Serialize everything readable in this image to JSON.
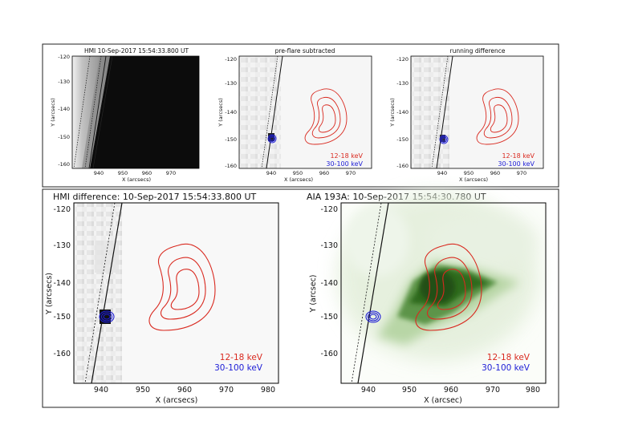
{
  "figure": {
    "colors": {
      "red_contour": "#d9291f",
      "blue_contour": "#1d1dd6",
      "green_emission": "#2e6a1e",
      "frame": "#222222"
    },
    "top_panels": [
      {
        "id": "hmi",
        "title": "HMI 10-Sep-2017 15:54:33.800 UT",
        "xlabel": "X (arcsecs)",
        "ylabel": "Y (arcsecs)",
        "xticks": [
          "940",
          "950",
          "960",
          "970"
        ],
        "yticks": [
          "-120",
          "-130",
          "-140",
          "-150",
          "-160"
        ],
        "legend": []
      },
      {
        "id": "preflare",
        "title": "pre-flare subtracted",
        "xlabel": "X (arcsecs)",
        "ylabel": "Y (arcsecs)",
        "xticks": [
          "940",
          "950",
          "960",
          "970"
        ],
        "yticks": [
          "-120",
          "-130",
          "-140",
          "-150",
          "-160"
        ],
        "legend": [
          "12-18 keV",
          "30-100 keV"
        ]
      },
      {
        "id": "runningdiff",
        "title": "running difference",
        "xlabel": "X (arcsecs)",
        "ylabel": "Y (arcsecs)",
        "xticks": [
          "940",
          "950",
          "960",
          "970"
        ],
        "yticks": [
          "-120",
          "-130",
          "-140",
          "-150",
          "-160"
        ],
        "legend": [
          "12-18 keV",
          "30-100 keV"
        ]
      }
    ],
    "bottom_panels": [
      {
        "id": "hmidiff",
        "title": "HMI difference: 10-Sep-2017 15:54:33.800 UT",
        "xlabel": "X (arcsecs)",
        "ylabel": "Y (arcsecs)",
        "xticks": [
          "940",
          "950",
          "960",
          "970",
          "980"
        ],
        "yticks": [
          "-120",
          "-130",
          "-140",
          "-150",
          "-160"
        ],
        "legend": [
          "12-18 keV",
          "30-100 keV"
        ]
      },
      {
        "id": "aia",
        "title": "AIA 193A: 10-Sep-2017 15:54:30.780 UT",
        "xlabel": "X (arcsec)",
        "ylabel": "Y (arcsec)",
        "xticks": [
          "940",
          "950",
          "960",
          "970",
          "980"
        ],
        "yticks": [
          "-120",
          "-130",
          "-140",
          "-150",
          "-160"
        ],
        "legend": [
          "12-18 keV",
          "30-100 keV"
        ]
      }
    ]
  }
}
